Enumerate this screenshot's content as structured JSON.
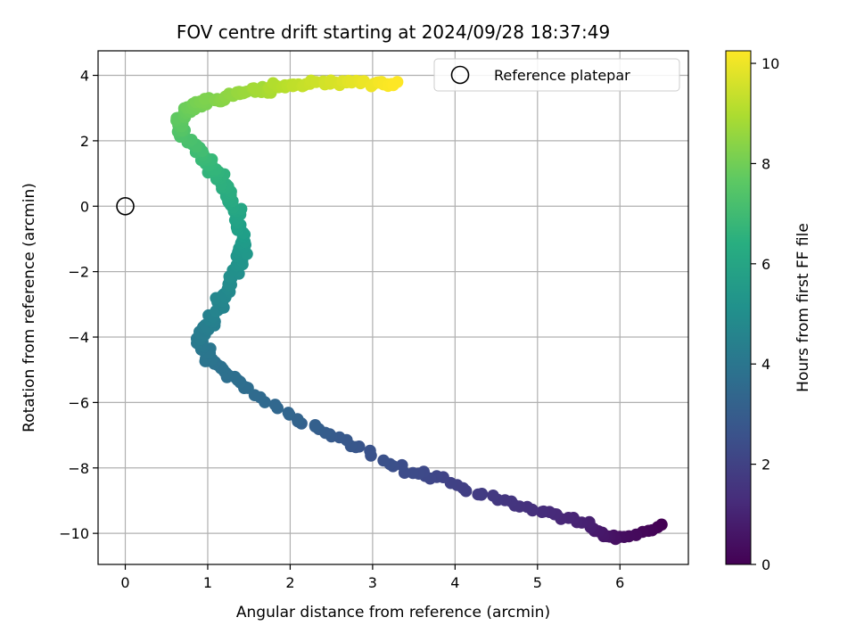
{
  "chart_data": {
    "type": "scatter",
    "title": "FOV centre drift starting at 2024/09/28 18:37:49",
    "xlabel": "Angular distance from reference (arcmin)",
    "ylabel": "Rotation from reference (arcmin)",
    "xlim": [
      -0.33,
      6.83
    ],
    "ylim": [
      -10.95,
      4.75
    ],
    "xticks": [
      0,
      1,
      2,
      3,
      4,
      5,
      6
    ],
    "yticks": [
      -10,
      -8,
      -6,
      -4,
      -2,
      0,
      2,
      4
    ],
    "grid": true,
    "colormap": "viridis",
    "colorbar": {
      "label": "Hours from first FF file",
      "range": [
        0,
        10.25
      ],
      "ticks": [
        0,
        2,
        4,
        6,
        8,
        10
      ]
    },
    "legend": {
      "position": "top-right",
      "entries": [
        "Reference platepar"
      ]
    },
    "reference_point": {
      "x": 0,
      "y": 0,
      "label": "Reference platepar"
    },
    "anchors": [
      {
        "x": 6.5,
        "y": -9.8,
        "h": 0.0
      },
      {
        "x": 6.1,
        "y": -10.1,
        "h": 0.3
      },
      {
        "x": 5.8,
        "y": -10.1,
        "h": 0.6
      },
      {
        "x": 5.6,
        "y": -9.7,
        "h": 0.9
      },
      {
        "x": 5.2,
        "y": -9.4,
        "h": 1.2
      },
      {
        "x": 4.8,
        "y": -9.2,
        "h": 1.5
      },
      {
        "x": 4.3,
        "y": -8.8,
        "h": 1.8
      },
      {
        "x": 3.8,
        "y": -8.3,
        "h": 2.1
      },
      {
        "x": 3.4,
        "y": -8.1,
        "h": 2.4
      },
      {
        "x": 2.9,
        "y": -7.4,
        "h": 2.7
      },
      {
        "x": 2.4,
        "y": -6.9,
        "h": 3.0
      },
      {
        "x": 2.0,
        "y": -6.4,
        "h": 3.3
      },
      {
        "x": 1.5,
        "y": -5.6,
        "h": 3.6
      },
      {
        "x": 1.0,
        "y": -4.7,
        "h": 3.9
      },
      {
        "x": 0.9,
        "y": -4.0,
        "h": 4.2
      },
      {
        "x": 1.1,
        "y": -3.2,
        "h": 4.6
      },
      {
        "x": 1.3,
        "y": -2.2,
        "h": 5.0
      },
      {
        "x": 1.45,
        "y": -1.2,
        "h": 5.5
      },
      {
        "x": 1.35,
        "y": -0.2,
        "h": 6.0
      },
      {
        "x": 1.15,
        "y": 0.8,
        "h": 6.5
      },
      {
        "x": 0.95,
        "y": 1.6,
        "h": 7.0
      },
      {
        "x": 0.65,
        "y": 2.3,
        "h": 7.4
      },
      {
        "x": 0.7,
        "y": 2.9,
        "h": 7.8
      },
      {
        "x": 1.0,
        "y": 3.2,
        "h": 8.2
      },
      {
        "x": 1.5,
        "y": 3.5,
        "h": 8.7
      },
      {
        "x": 2.0,
        "y": 3.7,
        "h": 9.2
      },
      {
        "x": 2.6,
        "y": 3.8,
        "h": 9.7
      },
      {
        "x": 3.25,
        "y": 3.7,
        "h": 10.25
      }
    ]
  }
}
